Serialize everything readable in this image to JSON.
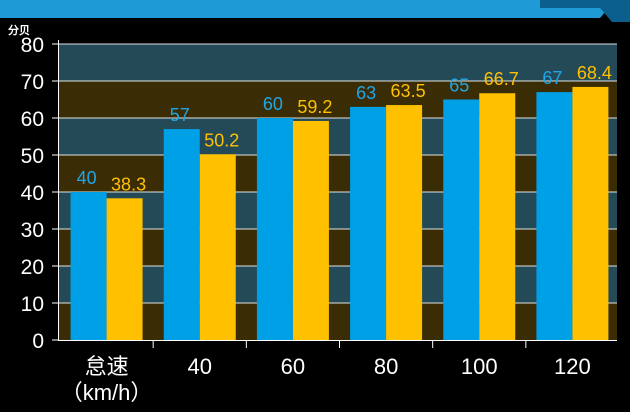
{
  "chart_data": {
    "type": "bar",
    "unit_label": "分贝",
    "categories": [
      "怠速\n（km/h）",
      "40",
      "60",
      "80",
      "100",
      "120"
    ],
    "series": [
      {
        "values": [
          40,
          57,
          60,
          63,
          65,
          67
        ],
        "color": "#00a0e6",
        "label_color": "#1fa6e8"
      },
      {
        "values": [
          38.3,
          50.2,
          59.2,
          63.5,
          66.7,
          68.4
        ],
        "color": "#ffc000",
        "label_color": "#ffc000"
      }
    ],
    "ylim": [
      0,
      80
    ],
    "yticks": [
      0,
      10,
      20,
      30,
      40,
      50,
      60,
      70,
      80
    ],
    "colors": {
      "background": "#000000",
      "band_dark": "#3a2d05",
      "band_teal": "#244a58",
      "top_bar": "#1e9ad6"
    }
  }
}
